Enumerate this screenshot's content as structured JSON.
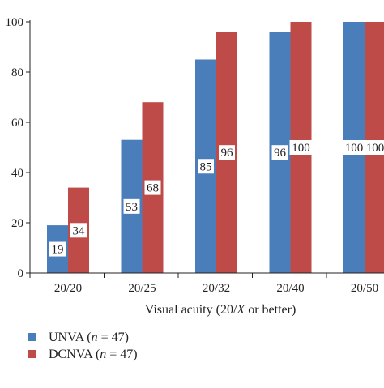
{
  "chart_data": {
    "type": "bar",
    "title": "",
    "xlabel": "Visual acuity (20/X or better)",
    "xlabel_parts": {
      "before": "Visual acuity (20/",
      "italic": "X",
      "after": " or better)"
    },
    "ylabel": "",
    "ylim": [
      0,
      100
    ],
    "yticks": [
      0,
      20,
      40,
      60,
      80,
      100
    ],
    "categories": [
      "20/20",
      "20/25",
      "20/32",
      "20/40",
      "20/50"
    ],
    "series": [
      {
        "name": "UNVA (n = 47)",
        "name_parts": {
          "before": "UNVA (",
          "italic": "n",
          "after": " = 47)"
        },
        "color": "#4a7ebb",
        "values": [
          19,
          53,
          85,
          96,
          100
        ],
        "labels": [
          "19",
          "53",
          "85",
          "96",
          "100"
        ]
      },
      {
        "name": "DCNVA (n = 47)",
        "name_parts": {
          "before": "DCNVA (",
          "italic": "n",
          "after": " = 47)"
        },
        "color": "#be4b48",
        "values": [
          34,
          68,
          96,
          100,
          100
        ],
        "labels": [
          "34",
          "68",
          "96",
          "100",
          "100"
        ]
      }
    ],
    "grid": false,
    "legend_position": "bottom-left"
  }
}
